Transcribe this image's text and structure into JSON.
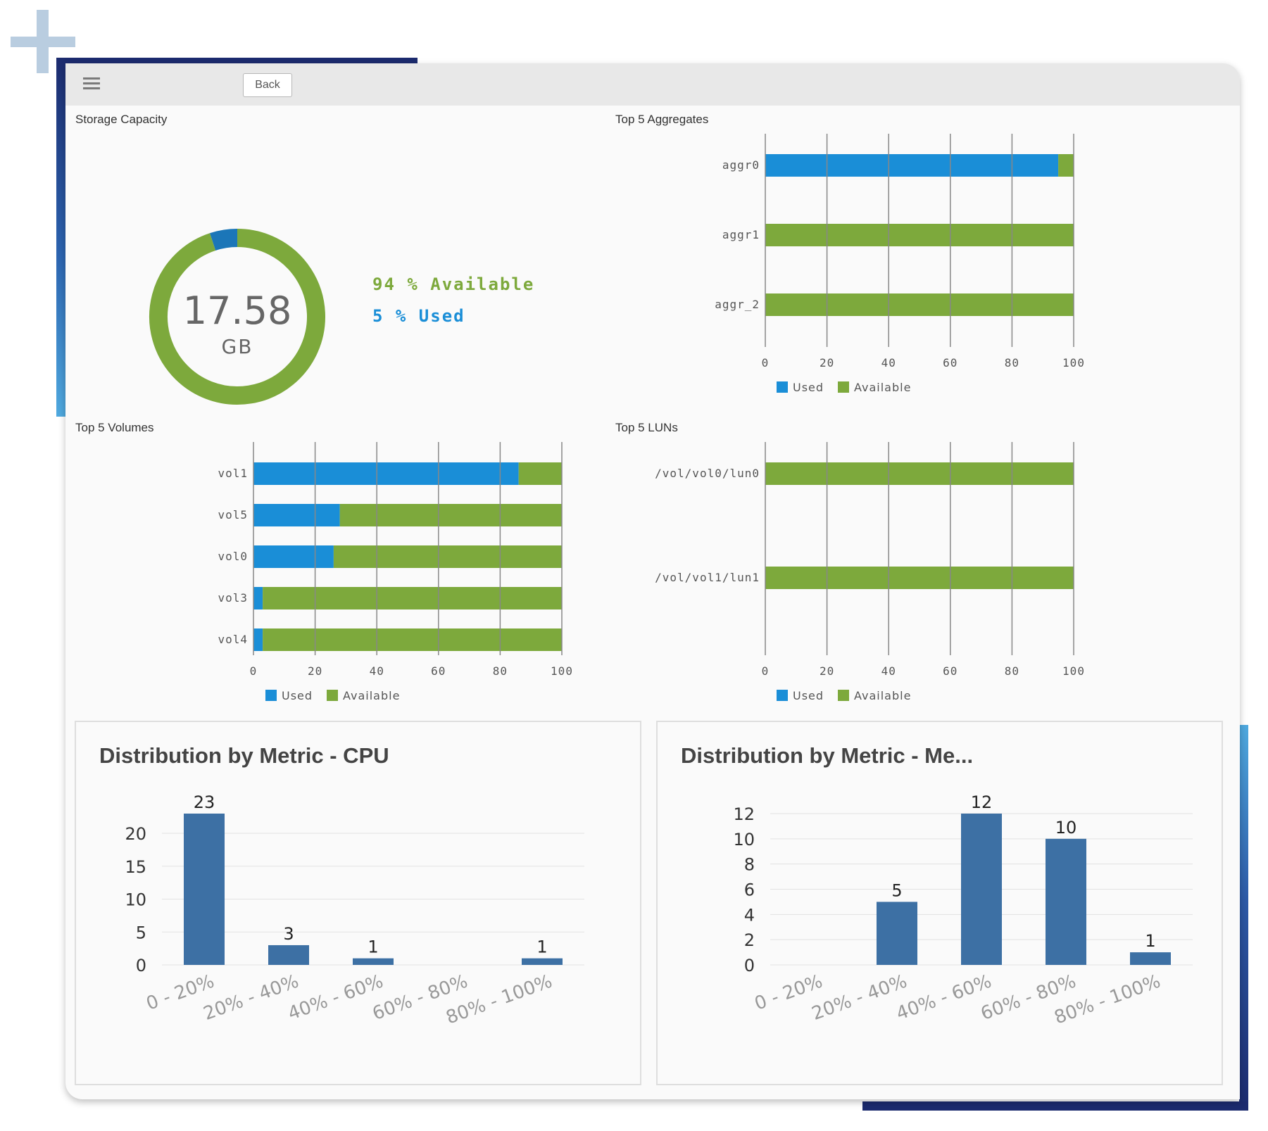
{
  "toolbar": {
    "menu_icon": "hamburger-menu-icon",
    "back_label": "Back"
  },
  "colors": {
    "used": "#1a8ed7",
    "available": "#7da93c",
    "dist_bar": "#3d70a4",
    "donut_used": "#1b76b8"
  },
  "storage_capacity": {
    "title": "Storage Capacity",
    "total_value": "17.58",
    "total_unit": "GB",
    "available_text": "94 % Available",
    "used_text": "5 % Used",
    "chart_data": {
      "type": "pie",
      "labels": [
        "Used",
        "Available"
      ],
      "values": [
        5,
        94
      ]
    }
  },
  "aggregates": {
    "title": "Top 5 Aggregates",
    "legend": [
      "Used",
      "Available"
    ],
    "chart_data": {
      "type": "bar",
      "orientation": "horizontal",
      "stacked": true,
      "categories": [
        "aggr0",
        "aggr1",
        "aggr_2"
      ],
      "series": [
        {
          "name": "Used",
          "values": [
            95,
            0,
            0
          ]
        },
        {
          "name": "Available",
          "values": [
            5,
            100,
            100
          ]
        }
      ],
      "xlim": [
        0,
        100
      ],
      "xticks": [
        "0",
        "20",
        "40",
        "60",
        "80",
        "100"
      ]
    }
  },
  "volumes": {
    "title": "Top 5 Volumes",
    "legend": [
      "Used",
      "Available"
    ],
    "chart_data": {
      "type": "bar",
      "orientation": "horizontal",
      "stacked": true,
      "categories": [
        "vol1",
        "vol5",
        "vol0",
        "vol3",
        "vol4"
      ],
      "series": [
        {
          "name": "Used",
          "values": [
            86,
            28,
            26,
            3,
            3
          ]
        },
        {
          "name": "Available",
          "values": [
            14,
            72,
            74,
            97,
            97
          ]
        }
      ],
      "xlim": [
        0,
        100
      ],
      "xticks": [
        "0",
        "20",
        "40",
        "60",
        "80",
        "100"
      ]
    }
  },
  "luns": {
    "title": "Top 5 LUNs",
    "legend": [
      "Used",
      "Available"
    ],
    "chart_data": {
      "type": "bar",
      "orientation": "horizontal",
      "stacked": true,
      "categories": [
        "/vol/vol0/lun0",
        "/vol/vol1/lun1"
      ],
      "series": [
        {
          "name": "Used",
          "values": [
            0,
            0
          ]
        },
        {
          "name": "Available",
          "values": [
            100,
            100
          ]
        }
      ],
      "xlim": [
        0,
        100
      ],
      "xticks": [
        "0",
        "20",
        "40",
        "60",
        "80",
        "100"
      ]
    }
  },
  "dist_cpu": {
    "title": "Distribution by Metric - CPU",
    "chart_data": {
      "type": "bar",
      "categories": [
        "0 - 20%",
        "20% - 40%",
        "40% - 60%",
        "60% - 80%",
        "80% - 100%"
      ],
      "values": [
        23,
        3,
        1,
        0,
        1
      ],
      "data_labels": [
        "23",
        "3",
        "1",
        "",
        "1"
      ],
      "ylim": [
        0,
        23
      ],
      "yticks": [
        "0",
        "5",
        "10",
        "15",
        "20"
      ]
    }
  },
  "dist_mem": {
    "title": "Distribution by Metric - Me...",
    "chart_data": {
      "type": "bar",
      "categories": [
        "0 - 20%",
        "20% - 40%",
        "40% - 60%",
        "60% - 80%",
        "80% - 100%"
      ],
      "values": [
        0,
        5,
        12,
        10,
        1
      ],
      "data_labels": [
        "",
        "5",
        "12",
        "10",
        "1"
      ],
      "ylim": [
        0,
        12
      ],
      "yticks": [
        "0",
        "2",
        "4",
        "6",
        "8",
        "10",
        "12"
      ]
    }
  }
}
